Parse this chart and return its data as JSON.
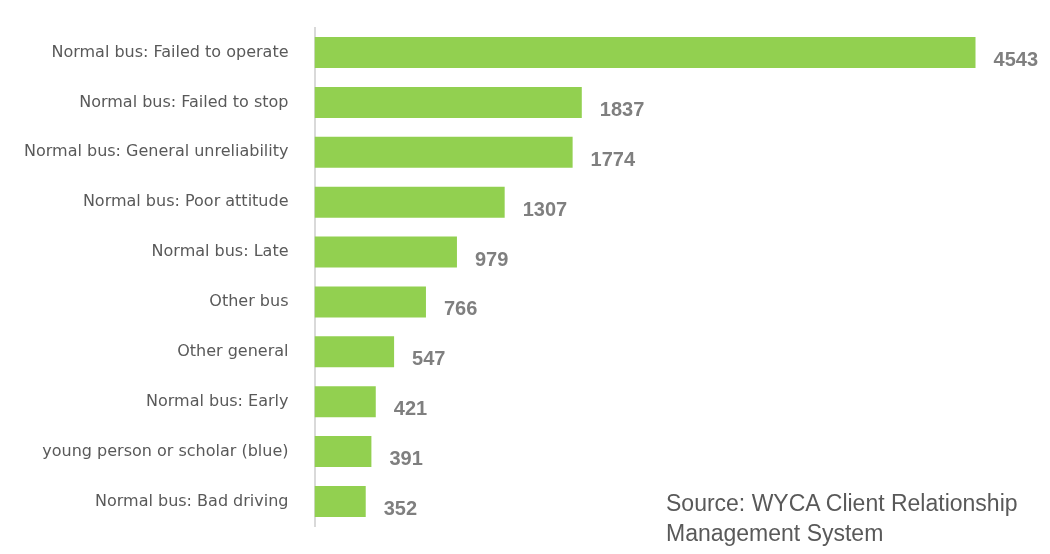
{
  "chart_data": {
    "type": "bar",
    "orientation": "horizontal",
    "categories": [
      "Normal bus: Failed to operate",
      "Normal bus: Failed to stop",
      "Normal bus: General unreliability",
      "Normal bus: Poor attitude",
      "Normal bus: Late",
      "Other bus",
      "Other general",
      "Normal bus: Early",
      "young person or scholar (blue)",
      "Normal bus: Bad driving"
    ],
    "values": [
      4543,
      1837,
      1774,
      1307,
      979,
      766,
      547,
      421,
      391,
      352
    ],
    "color": "#92d050",
    "data_labels": true,
    "grid": false,
    "legend": false,
    "tick_labels": "y",
    "annotations": [
      "Source: WYCA Client Relationship Management System"
    ]
  }
}
